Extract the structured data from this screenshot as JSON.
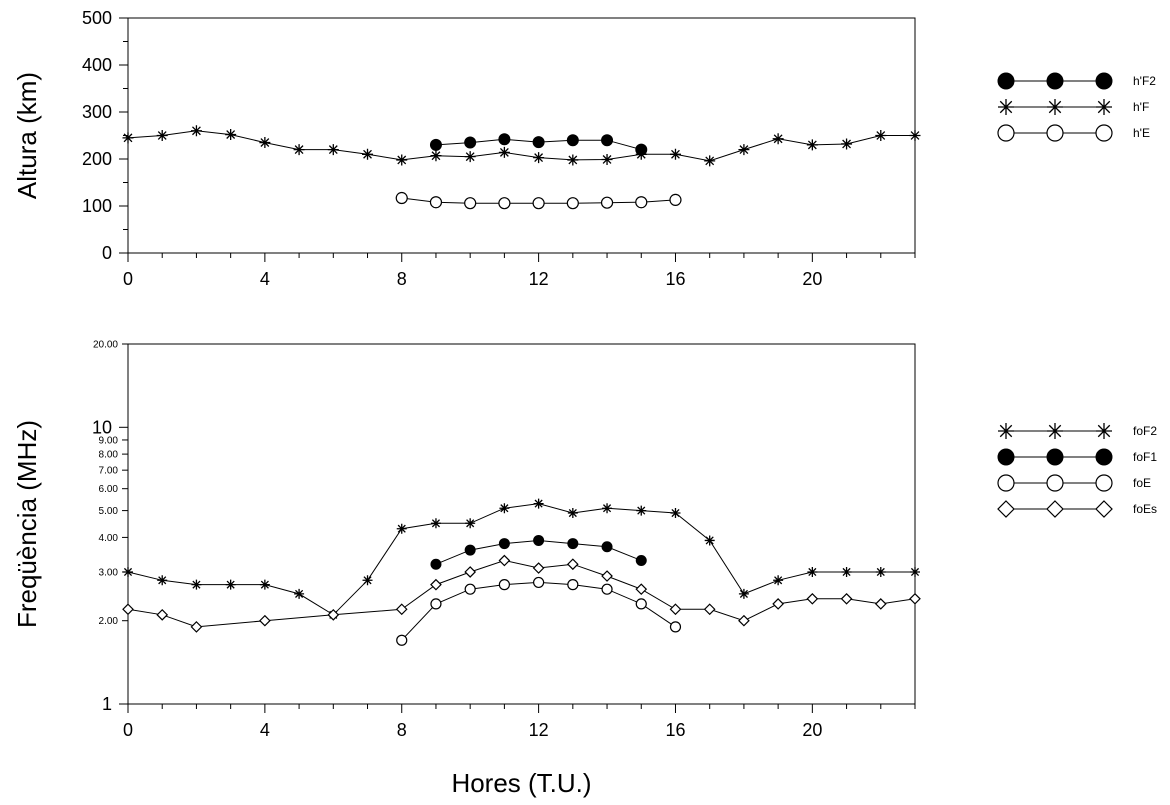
{
  "chart_data": [
    {
      "type": "line",
      "xlabel": "",
      "ylabel": "Altura (km)",
      "xlim": [
        0,
        23
      ],
      "ylim": [
        0,
        500
      ],
      "xticks": [
        "0",
        "4",
        "8",
        "12",
        "16",
        "20"
      ],
      "yticks": [
        "0",
        "100",
        "200",
        "300",
        "400",
        "500"
      ],
      "scale": "linear",
      "legend_position": "right",
      "series": [
        {
          "name": "h'F2",
          "marker": "filled-circle",
          "x": [
            9,
            10,
            11,
            12,
            13,
            14,
            15
          ],
          "y": [
            230,
            235,
            242,
            236,
            240,
            240,
            220
          ]
        },
        {
          "name": "h'F",
          "marker": "asterisk",
          "x": [
            0,
            1,
            2,
            3,
            4,
            5,
            6,
            7,
            8,
            9,
            10,
            11,
            12,
            13,
            14,
            15,
            16,
            17,
            18,
            19,
            20,
            21,
            22,
            23
          ],
          "y": [
            245,
            250,
            260,
            252,
            235,
            220,
            220,
            210,
            198,
            207,
            205,
            214,
            203,
            198,
            199,
            210,
            210,
            196,
            220,
            243,
            230,
            232,
            250,
            250
          ]
        },
        {
          "name": "h'E",
          "marker": "open-circle",
          "x": [
            8,
            9,
            10,
            11,
            12,
            13,
            14,
            15,
            16
          ],
          "y": [
            117,
            108,
            106,
            106,
            106,
            106,
            107,
            108,
            113
          ]
        }
      ]
    },
    {
      "type": "line",
      "xlabel": "Hores (T.U.)",
      "ylabel": "Freqüència (MHz)",
      "xlim": [
        0,
        23
      ],
      "ylim": [
        1,
        20
      ],
      "scale": "log",
      "xticks": [
        "0",
        "4",
        "8",
        "12",
        "16",
        "20"
      ],
      "yticks": [
        {
          "value": 1,
          "label": "1",
          "major": true
        },
        {
          "value": 2,
          "label": "2.00",
          "major": false
        },
        {
          "value": 3,
          "label": "3.00",
          "major": false
        },
        {
          "value": 4,
          "label": "4.00",
          "major": false
        },
        {
          "value": 5,
          "label": "5.00",
          "major": false
        },
        {
          "value": 6,
          "label": "6.00",
          "major": false
        },
        {
          "value": 7,
          "label": "7.00",
          "major": false
        },
        {
          "value": 8,
          "label": "8.00",
          "major": false
        },
        {
          "value": 9,
          "label": "9.00",
          "major": false
        },
        {
          "value": 10,
          "label": "10",
          "major": true
        },
        {
          "value": 20,
          "label": "20.00",
          "major": false
        }
      ],
      "legend_position": "right",
      "series": [
        {
          "name": "foF2",
          "marker": "asterisk",
          "x": [
            0,
            1,
            2,
            3,
            4,
            5,
            6,
            7,
            8,
            9,
            10,
            11,
            12,
            13,
            14,
            15,
            16,
            17,
            18,
            19,
            20,
            21,
            22,
            23
          ],
          "y": [
            3.0,
            2.8,
            2.7,
            2.7,
            2.7,
            2.5,
            2.1,
            2.8,
            4.3,
            4.5,
            4.5,
            5.1,
            5.3,
            4.9,
            5.1,
            5.0,
            4.9,
            3.9,
            2.5,
            2.8,
            3.0,
            3.0,
            3.0,
            3.0
          ]
        },
        {
          "name": "foF1",
          "marker": "filled-circle",
          "x": [
            9,
            10,
            11,
            12,
            13,
            14,
            15
          ],
          "y": [
            3.2,
            3.6,
            3.8,
            3.9,
            3.8,
            3.7,
            3.3
          ]
        },
        {
          "name": "foE",
          "marker": "open-circle",
          "x": [
            8,
            9,
            10,
            11,
            12,
            13,
            14,
            15,
            16
          ],
          "y": [
            1.7,
            2.3,
            2.6,
            2.7,
            2.75,
            2.7,
            2.6,
            2.3,
            1.9
          ]
        },
        {
          "name": "foEs",
          "marker": "diamond",
          "x": [
            0,
            1,
            2,
            4,
            6,
            8,
            9,
            10,
            11,
            12,
            13,
            14,
            15,
            16,
            17,
            18,
            19,
            20,
            21,
            22,
            23
          ],
          "y": [
            2.2,
            2.1,
            1.9,
            2.0,
            2.1,
            2.2,
            2.7,
            3.0,
            3.3,
            3.1,
            3.2,
            2.9,
            2.6,
            2.2,
            2.2,
            2.0,
            2.3,
            2.4,
            2.4,
            2.3,
            2.4
          ]
        }
      ]
    }
  ]
}
